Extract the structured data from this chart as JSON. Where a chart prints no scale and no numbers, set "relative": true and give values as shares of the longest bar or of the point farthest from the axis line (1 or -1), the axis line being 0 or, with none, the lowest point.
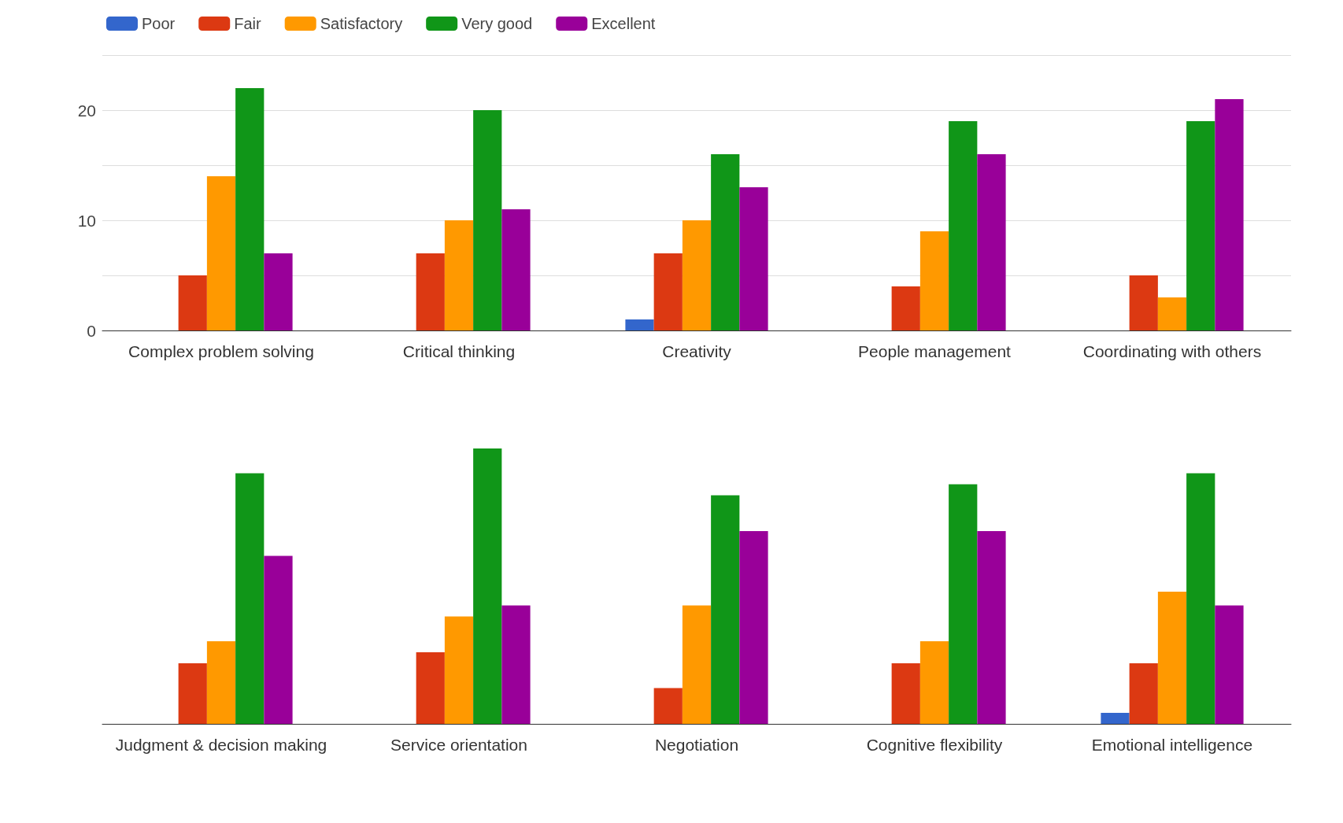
{
  "chart_data": [
    {
      "type": "bar",
      "categories": [
        "Complex problem solving",
        "Critical thinking",
        "Creativity",
        "People management",
        "Coordinating with others"
      ],
      "series": [
        {
          "name": "Poor",
          "color": "#3366cc",
          "values": [
            null,
            null,
            1,
            null,
            null
          ]
        },
        {
          "name": "Fair",
          "color": "#dc3912",
          "values": [
            5,
            7,
            7,
            4,
            5
          ]
        },
        {
          "name": "Satisfactory",
          "color": "#ff9900",
          "values": [
            14,
            10,
            10,
            9,
            3
          ]
        },
        {
          "name": "Very good",
          "color": "#109618",
          "values": [
            22,
            20,
            16,
            19,
            19
          ]
        },
        {
          "name": "Excellent",
          "color": "#990099",
          "values": [
            7,
            11,
            13,
            16,
            21
          ]
        }
      ],
      "ylim": [
        0,
        25
      ],
      "yticks": [
        0,
        {
          "value": 5,
          "label": null
        },
        10,
        {
          "value": 15,
          "label": null
        },
        20,
        {
          "value": 25,
          "label": null
        }
      ],
      "grid": "y",
      "legend": "top left"
    },
    {
      "type": "bar",
      "categories": [
        "Judgment & decision making",
        "Service orientation",
        "Negotiation",
        "Cognitive flexibility",
        "Emotional intelligence"
      ],
      "series": [
        {
          "color": "#3366cc",
          "values": [
            null,
            null,
            null,
            null,
            0.04
          ]
        },
        {
          "color": "#dc3912",
          "values": [
            0.22,
            0.26,
            0.13,
            0.22,
            0.22
          ]
        },
        {
          "color": "#ff9900",
          "values": [
            0.3,
            0.39,
            0.43,
            0.3,
            0.48
          ]
        },
        {
          "color": "#109618",
          "values": [
            0.91,
            1,
            0.83,
            0.87,
            0.91
          ]
        },
        {
          "color": "#990099",
          "values": [
            0.61,
            0.43,
            0.7,
            0.7,
            0.43
          ]
        }
      ],
      "relative": true,
      "legend": false
    }
  ]
}
